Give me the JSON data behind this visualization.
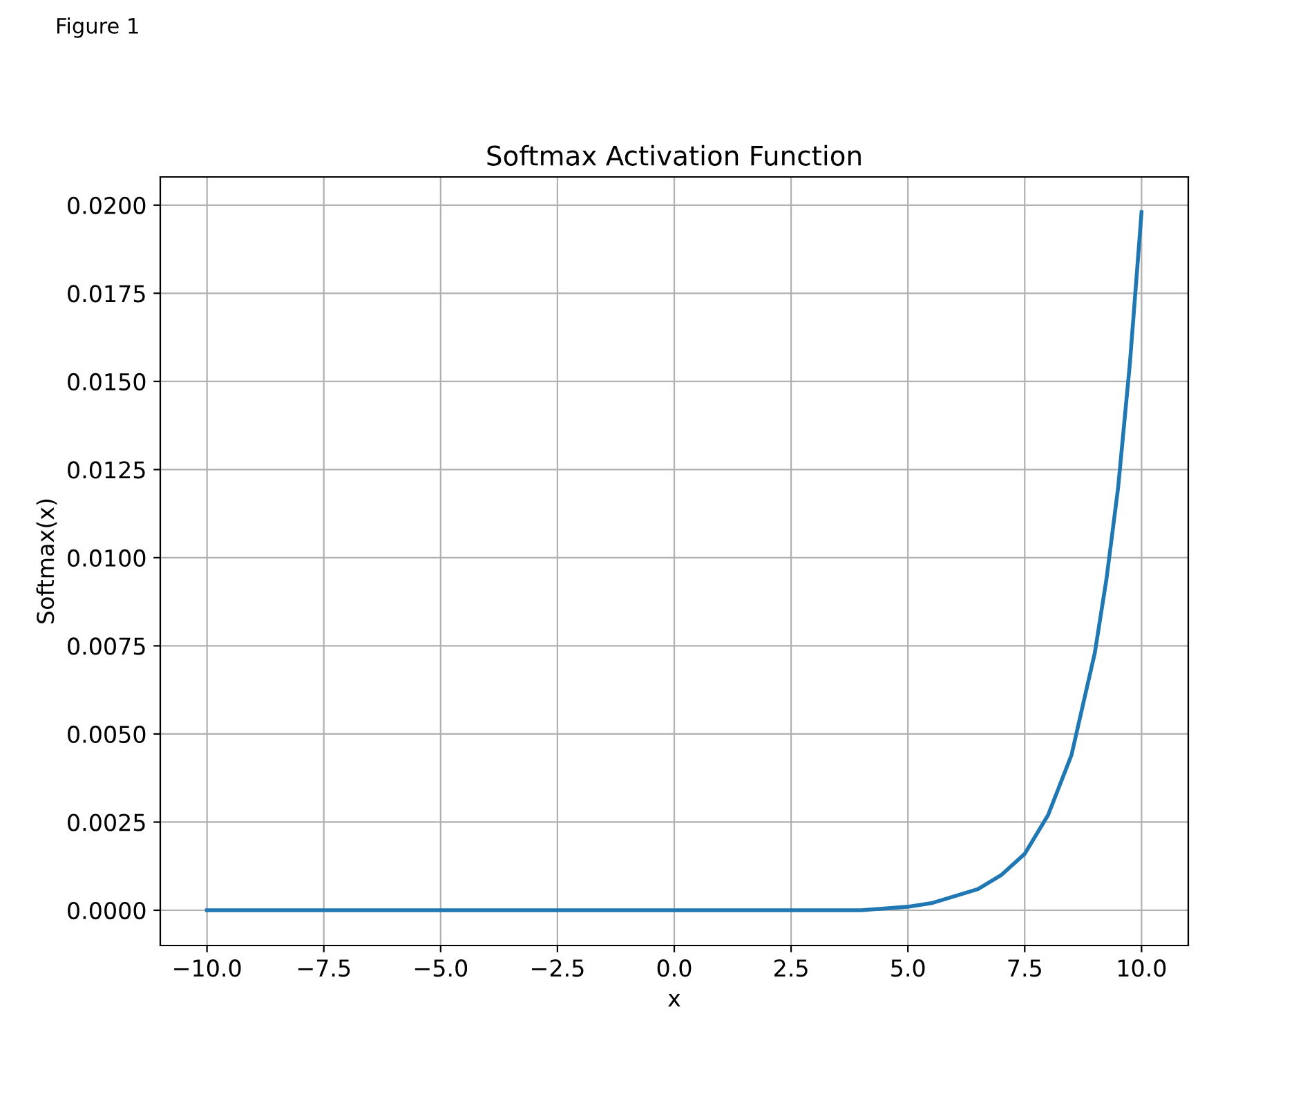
{
  "chart_data": {
    "type": "line",
    "title": "Softmax Activation Function",
    "xlabel": "x",
    "ylabel": "Softmax(x)",
    "annotations": [
      "Figure 1"
    ],
    "series": [
      {
        "color": "#1f77b4",
        "x": [
          -10,
          -5,
          0,
          2.5,
          4,
          5,
          5.5,
          6,
          6.5,
          7,
          7.5,
          8,
          8.5,
          9,
          9.25,
          9.5,
          9.75,
          10
        ],
        "values": [
          0,
          0,
          0,
          0,
          0,
          0.0001,
          0.0002,
          0.0004,
          0.0006,
          0.001,
          0.0016,
          0.0027,
          0.0044,
          0.0073,
          0.0094,
          0.012,
          0.0155,
          0.0198
        ]
      }
    ],
    "xlim": [
      -11,
      11
    ],
    "ylim": [
      -0.001,
      0.0208
    ],
    "xticks": [
      {
        "value": -10,
        "label": "−10.0"
      },
      {
        "value": -7.5,
        "label": "−7.5"
      },
      {
        "value": -5,
        "label": "−5.0"
      },
      {
        "value": -2.5,
        "label": "−2.5"
      },
      {
        "value": 0,
        "label": "0.0"
      },
      {
        "value": 2.5,
        "label": "2.5"
      },
      {
        "value": 5,
        "label": "5.0"
      },
      {
        "value": 7.5,
        "label": "7.5"
      },
      {
        "value": 10,
        "label": "10.0"
      }
    ],
    "yticks": [
      {
        "value": 0,
        "label": "0.0000"
      },
      {
        "value": 0.0025,
        "label": "0.0025"
      },
      {
        "value": 0.005,
        "label": "0.0050"
      },
      {
        "value": 0.0075,
        "label": "0.0075"
      },
      {
        "value": 0.01,
        "label": "0.0100"
      },
      {
        "value": 0.0125,
        "label": "0.0125"
      },
      {
        "value": 0.015,
        "label": "0.0150"
      },
      {
        "value": 0.0175,
        "label": "0.0175"
      },
      {
        "value": 0.02,
        "label": "0.0200"
      }
    ],
    "grid": true
  }
}
